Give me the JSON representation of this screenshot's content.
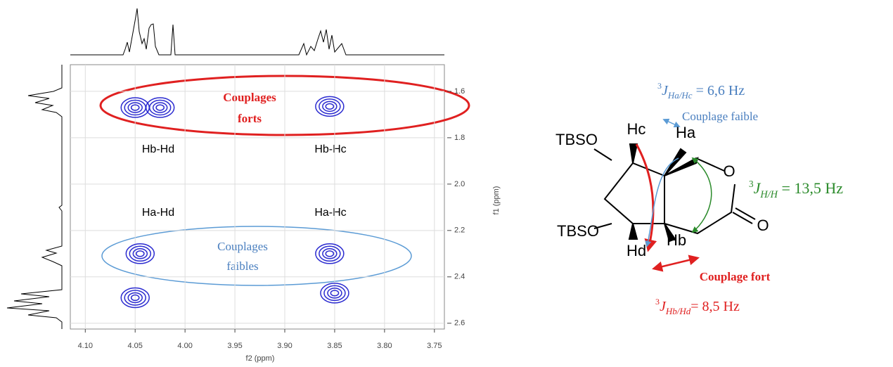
{
  "chart_data": {
    "type": "contour",
    "xlabel": "f2 (ppm)",
    "ylabel": "f1 (ppm)",
    "xlim": [
      4.115,
      3.74
    ],
    "ylim": [
      1.485,
      2.625
    ],
    "xticks": [
      {
        "value": 4.1,
        "label": "4.10"
      },
      4.05,
      {
        "value": 4.0,
        "label": "4.00"
      },
      3.95,
      {
        "value": 3.9,
        "label": "3.90"
      },
      3.85,
      {
        "value": 3.8,
        "label": "3.80"
      },
      3.75
    ],
    "yticks": [
      1.6,
      1.8,
      {
        "value": 2.0,
        "label": "2.0"
      },
      2.2,
      2.4,
      2.6
    ],
    "grid": true,
    "color": "#2b2bd0",
    "peaks": [
      {
        "x": 4.05,
        "y": 1.67
      },
      {
        "x": 4.025,
        "y": 1.67
      },
      {
        "x": 3.855,
        "y": 1.665
      },
      {
        "x": 4.045,
        "y": 2.3
      },
      {
        "x": 3.855,
        "y": 2.3
      },
      {
        "x": 4.05,
        "y": 2.49
      },
      {
        "x": 3.85,
        "y": 2.47
      }
    ],
    "annotations": [
      "Hb-Hd",
      "Hb-Hc",
      "Ha-Hd",
      "Ha-Hc"
    ],
    "strong_label": [
      "Couplages",
      "forts"
    ],
    "weak_label": [
      "Couplages",
      "faibles"
    ]
  },
  "diagram": {
    "atoms": [
      "TBSO",
      "Hc",
      "Ha",
      "O",
      "TBSO",
      "Hd",
      "Hb",
      "O"
    ],
    "j_ac": {
      "sup": "3",
      "j": "J",
      "sub": "Ha/Hc",
      "rest": " = 6,6 Hz"
    },
    "weak": "Couplage faible",
    "j_hh": {
      "sup": "3",
      "j": "J",
      "sub": "H/H",
      "rest": " = 13,5 Hz"
    },
    "strong": "Couplage fort",
    "j_bd": {
      "sup": "3",
      "j": "J",
      "sub": "Hb/Hd",
      "rest": "= 8,5 Hz"
    }
  }
}
